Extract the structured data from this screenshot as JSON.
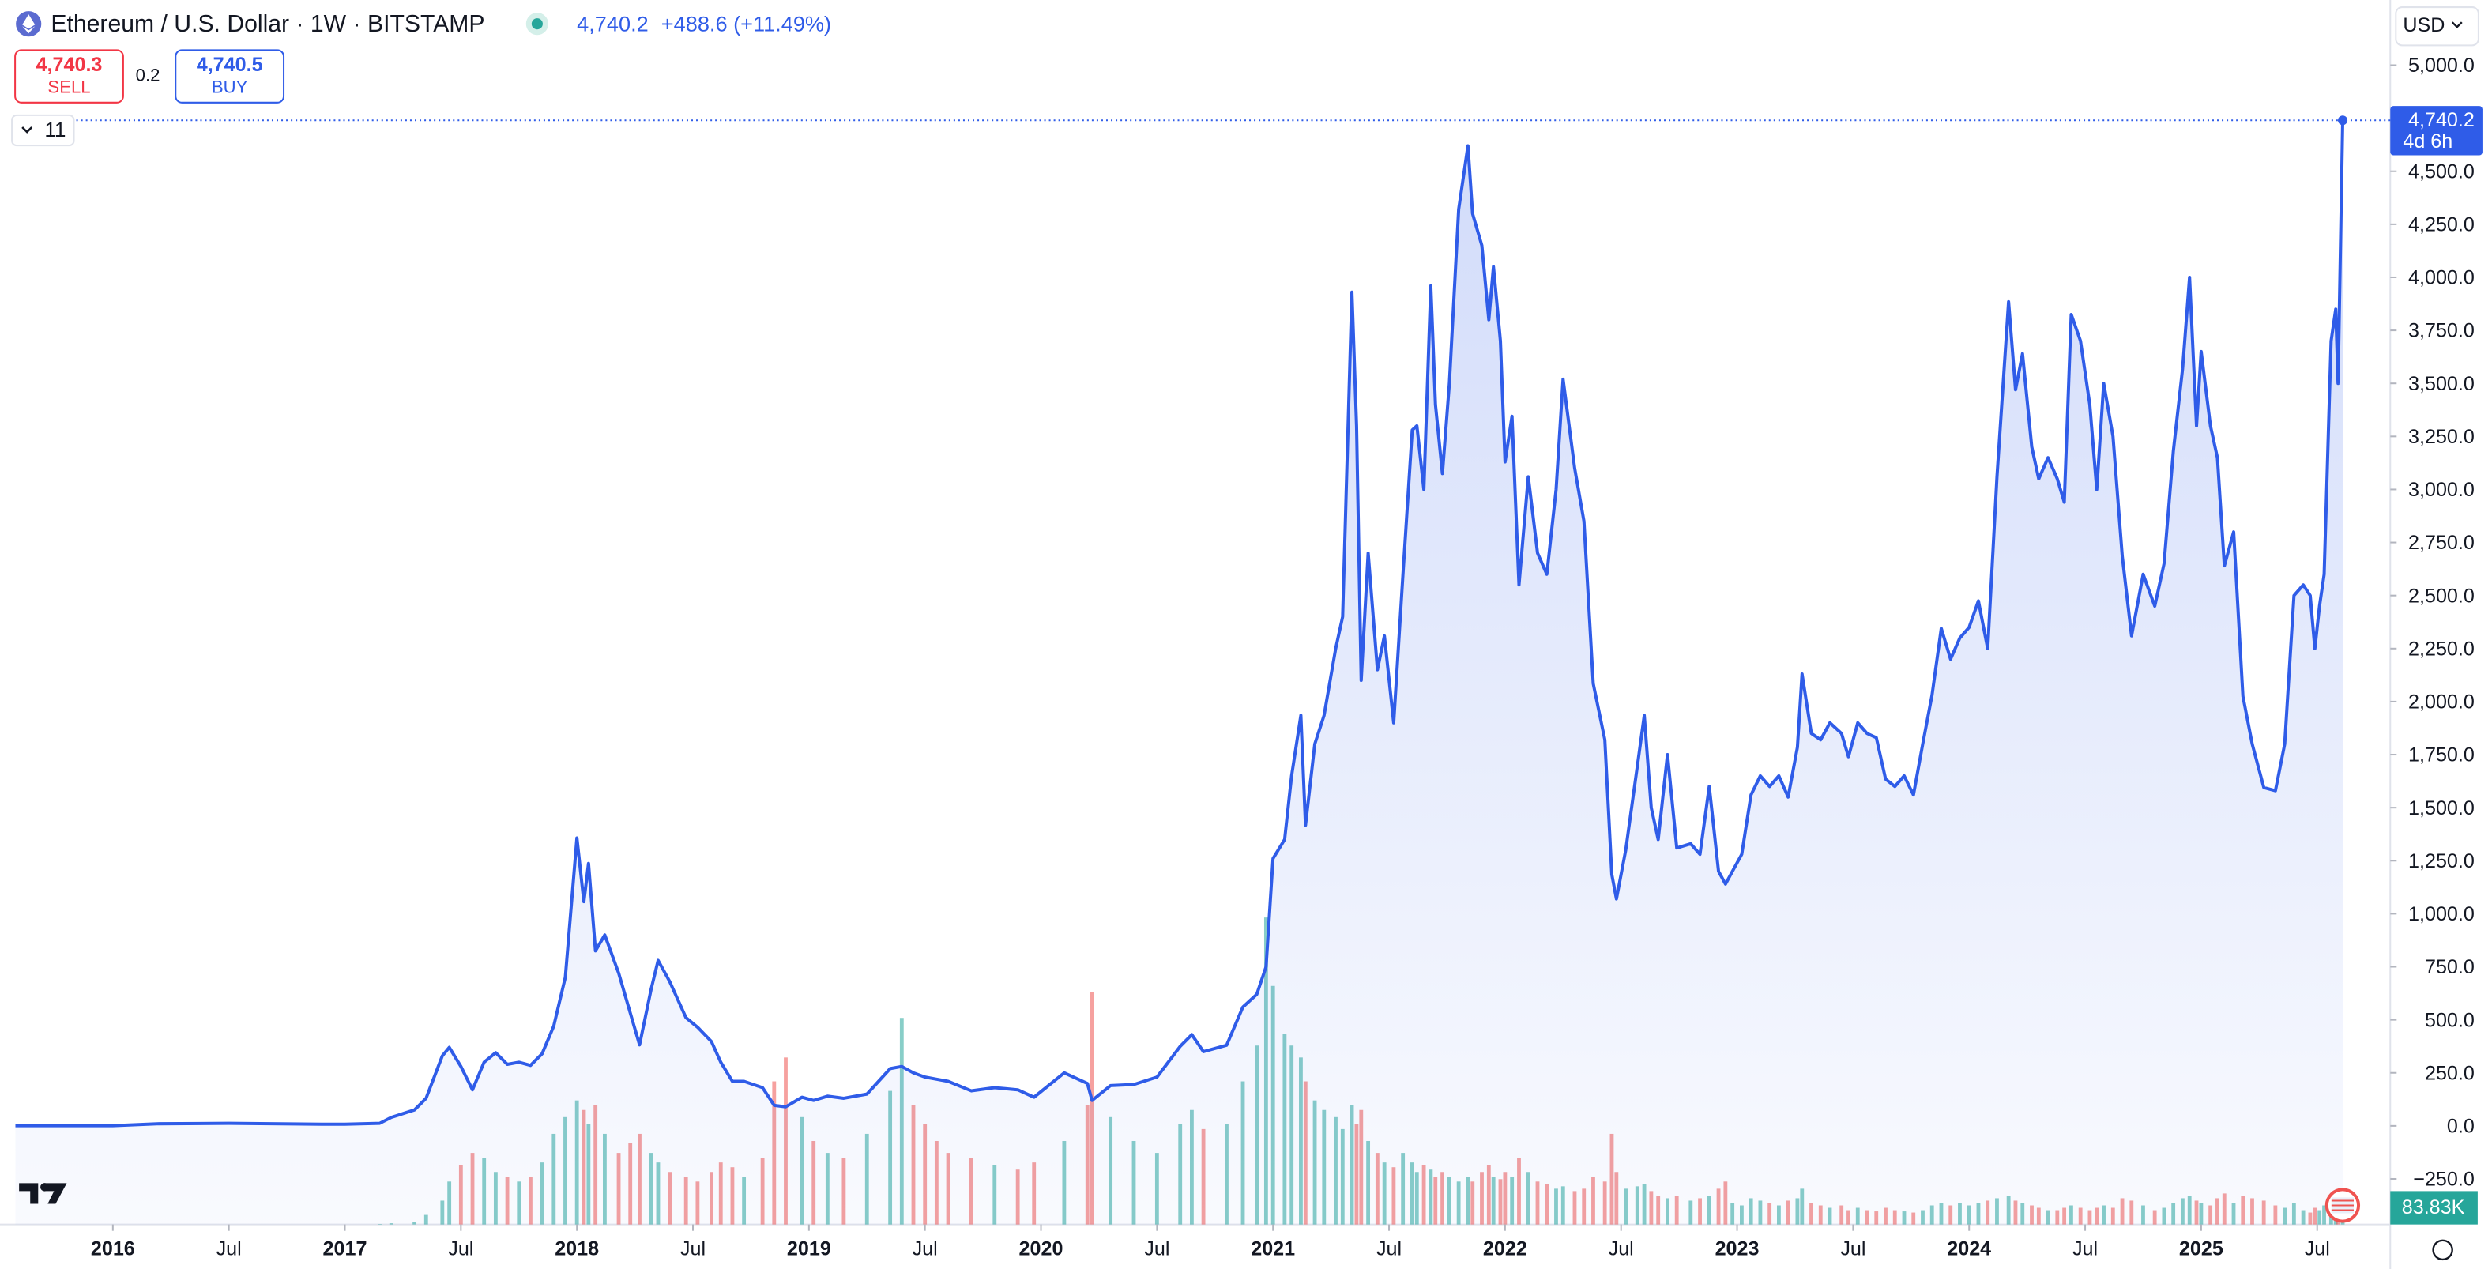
{
  "header": {
    "symbol": "Ethereum / U.S. Dollar · 1W · BITSTAMP",
    "last": "4,740.2",
    "change": "+488.6 (+11.49%)",
    "sell_price": "4,740.3",
    "sell": "SELL",
    "spread": "0.2",
    "buy_price": "4,740.5",
    "buy": "BUY",
    "indicators": "11",
    "currency": "USD"
  },
  "chart_data": {
    "type": "area",
    "color": "#2f5ce8",
    "grid": false,
    "x": [
      2015.58,
      2015.8,
      2016.0,
      2016.2,
      2016.5,
      2016.9,
      2017.0,
      2017.15,
      2017.2,
      2017.3,
      2017.35,
      2017.42,
      2017.45,
      2017.5,
      2017.55,
      2017.6,
      2017.65,
      2017.7,
      2017.75,
      2017.8,
      2017.85,
      2017.9,
      2017.95,
      2018.0,
      2018.03,
      2018.05,
      2018.08,
      2018.12,
      2018.18,
      2018.23,
      2018.27,
      2018.32,
      2018.35,
      2018.4,
      2018.47,
      2018.52,
      2018.58,
      2018.62,
      2018.67,
      2018.72,
      2018.8,
      2018.85,
      2018.9,
      2018.97,
      2019.02,
      2019.08,
      2019.15,
      2019.25,
      2019.35,
      2019.4,
      2019.45,
      2019.5,
      2019.55,
      2019.6,
      2019.7,
      2019.8,
      2019.9,
      2019.97,
      2020.1,
      2020.2,
      2020.22,
      2020.3,
      2020.4,
      2020.5,
      2020.6,
      2020.65,
      2020.7,
      2020.8,
      2020.87,
      2020.93,
      2020.97,
      2021.0,
      2021.05,
      2021.08,
      2021.12,
      2021.14,
      2021.18,
      2021.22,
      2021.27,
      2021.3,
      2021.34,
      2021.36,
      2021.38,
      2021.41,
      2021.45,
      2021.48,
      2021.52,
      2021.56,
      2021.6,
      2021.62,
      2021.65,
      2021.68,
      2021.7,
      2021.73,
      2021.76,
      2021.8,
      2021.84,
      2021.86,
      2021.9,
      2021.93,
      2021.95,
      2021.98,
      2022.0,
      2022.03,
      2022.06,
      2022.1,
      2022.14,
      2022.18,
      2022.22,
      2022.25,
      2022.3,
      2022.34,
      2022.38,
      2022.43,
      2022.46,
      2022.48,
      2022.52,
      2022.57,
      2022.6,
      2022.63,
      2022.66,
      2022.7,
      2022.74,
      2022.8,
      2022.84,
      2022.88,
      2022.92,
      2022.95,
      2022.98,
      2023.02,
      2023.06,
      2023.1,
      2023.14,
      2023.18,
      2023.22,
      2023.26,
      2023.28,
      2023.32,
      2023.36,
      2023.4,
      2023.45,
      2023.48,
      2023.52,
      2023.56,
      2023.6,
      2023.64,
      2023.68,
      2023.72,
      2023.76,
      2023.8,
      2023.84,
      2023.88,
      2023.92,
      2023.96,
      2024.0,
      2024.04,
      2024.08,
      2024.12,
      2024.17,
      2024.2,
      2024.23,
      2024.27,
      2024.3,
      2024.34,
      2024.38,
      2024.41,
      2024.44,
      2024.48,
      2024.52,
      2024.55,
      2024.58,
      2024.62,
      2024.66,
      2024.7,
      2024.75,
      2024.8,
      2024.84,
      2024.88,
      2024.92,
      2024.95,
      2024.98,
      2025.0,
      2025.04,
      2025.07,
      2025.1,
      2025.14,
      2025.18,
      2025.22,
      2025.27,
      2025.32,
      2025.36,
      2025.4,
      2025.44,
      2025.47,
      2025.49,
      2025.51,
      2025.53,
      2025.56,
      2025.58,
      2025.59,
      2025.61
    ],
    "values": [
      1,
      1,
      1,
      10,
      12,
      8,
      8,
      12,
      40,
      75,
      130,
      330,
      370,
      280,
      170,
      300,
      345,
      290,
      300,
      285,
      340,
      470,
      700,
      1357,
      1057,
      1237,
      825,
      900,
      720,
      532,
      382,
      645,
      780,
      680,
      510,
      465,
      397,
      300,
      210,
      210,
      180,
      97,
      90,
      135,
      120,
      140,
      130,
      150,
      270,
      280,
      250,
      230,
      220,
      210,
      165,
      180,
      170,
      135,
      250,
      200,
      120,
      190,
      195,
      230,
      375,
      430,
      350,
      380,
      560,
      620,
      750,
      1260,
      1350,
      1650,
      1935,
      1417,
      1800,
      1935,
      2250,
      2400,
      3930,
      3300,
      2100,
      2700,
      2150,
      2310,
      1900,
      2600,
      3280,
      3300,
      3000,
      3960,
      3400,
      3075,
      3500,
      4320,
      4620,
      4300,
      4150,
      3800,
      4050,
      3700,
      3130,
      3345,
      2550,
      3060,
      2700,
      2600,
      3000,
      3520,
      3100,
      2850,
      2085,
      1820,
      1185,
      1070,
      1300,
      1695,
      1935,
      1500,
      1350,
      1750,
      1310,
      1330,
      1280,
      1600,
      1200,
      1140,
      1200,
      1280,
      1560,
      1650,
      1600,
      1650,
      1550,
      1785,
      2130,
      1850,
      1820,
      1900,
      1850,
      1740,
      1900,
      1850,
      1830,
      1635,
      1600,
      1650,
      1560,
      1800,
      2030,
      2345,
      2200,
      2300,
      2350,
      2475,
      2250,
      3060,
      3885,
      3470,
      3640,
      3200,
      3050,
      3150,
      3050,
      2940,
      3825,
      3700,
      3400,
      3000,
      3500,
      3250,
      2685,
      2310,
      2600,
      2450,
      2650,
      3180,
      3570,
      4000,
      3300,
      3650,
      3300,
      3150,
      2640,
      2800,
      2025,
      1800,
      1595,
      1580,
      1800,
      2500,
      2550,
      2500,
      2250,
      2450,
      2600,
      3700,
      3850,
      3500,
      4740.2
    ],
    "volume": [
      0,
      0,
      0,
      0,
      0,
      0,
      0,
      2,
      5,
      10,
      40,
      100,
      180,
      250,
      300,
      280,
      220,
      200,
      180,
      200,
      260,
      380,
      450,
      520,
      480,
      420,
      500,
      380,
      300,
      340,
      380,
      300,
      260,
      220,
      200,
      180,
      220,
      260,
      240,
      200,
      280,
      600,
      700,
      450,
      350,
      300,
      280,
      380,
      560,
      866,
      500,
      420,
      350,
      300,
      280,
      250,
      230,
      260,
      350,
      500,
      973,
      450,
      350,
      300,
      420,
      480,
      400,
      420,
      600,
      750,
      1287,
      1000,
      800,
      750,
      700,
      600,
      520,
      480,
      450,
      400,
      500,
      420,
      480,
      350,
      300,
      260,
      240,
      300,
      260,
      220,
      250,
      230,
      200,
      220,
      200,
      180,
      200,
      180,
      220,
      250,
      200,
      190,
      220,
      200,
      280,
      220,
      180,
      170,
      150,
      160,
      140,
      150,
      200,
      180,
      380,
      220,
      150,
      160,
      170,
      140,
      120,
      110,
      120,
      100,
      110,
      120,
      150,
      180,
      90,
      80,
      110,
      100,
      90,
      80,
      100,
      110,
      150,
      90,
      80,
      70,
      80,
      60,
      70,
      60,
      55,
      70,
      60,
      55,
      50,
      60,
      80,
      90,
      80,
      90,
      80,
      90,
      100,
      110,
      120,
      100,
      90,
      80,
      70,
      60,
      60,
      70,
      80,
      70,
      60,
      70,
      80,
      70,
      110,
      100,
      80,
      60,
      70,
      90,
      110,
      120,
      100,
      90,
      80,
      110,
      130,
      90,
      120,
      110,
      100,
      80,
      70,
      90,
      60,
      50,
      70,
      60,
      80,
      110,
      100,
      90,
      83.83
    ],
    "volume_label": "83.83K",
    "volume_colors": {
      "up": "#26a69a",
      "down": "#ef5350"
    },
    "vlim": [
      0,
      1600
    ],
    "last_price_label": "4,740.2",
    "countdown": "4d 6h",
    "xlim": [
      2015.5753,
      2025.8151
    ],
    "xticks": [
      2016,
      {
        "value": 2016.5,
        "label": "Jul"
      },
      2017,
      {
        "value": 2017.5,
        "label": "Jul"
      },
      2018,
      {
        "value": 2018.5,
        "label": "Jul"
      },
      2019,
      {
        "value": 2019.5,
        "label": "Jul"
      },
      2020,
      {
        "value": 2020.5,
        "label": "Jul"
      },
      2021,
      {
        "value": 2021.5,
        "label": "Jul"
      },
      2022,
      {
        "value": 2022.5,
        "label": "Jul"
      },
      2023,
      {
        "value": 2023.5,
        "label": "Jul"
      },
      2024,
      {
        "value": 2024.5,
        "label": "Jul"
      },
      2025,
      {
        "value": 2025.5,
        "label": "Jul"
      }
    ],
    "ylim": [
      -464.8,
      5307.3
    ],
    "yticks": [
      {
        "value": -250,
        "label": "−250.0"
      },
      {
        "value": 0,
        "label": "0.0"
      },
      {
        "value": 250,
        "label": "250.0"
      },
      {
        "value": 500,
        "label": "500.0"
      },
      {
        "value": 750,
        "label": "750.0"
      },
      {
        "value": 1000,
        "label": "1,000.0"
      },
      {
        "value": 1250,
        "label": "1,250.0"
      },
      {
        "value": 1500,
        "label": "1,500.0"
      },
      {
        "value": 1750,
        "label": "1,750.0"
      },
      {
        "value": 2000,
        "label": "2,000.0"
      },
      {
        "value": 2250,
        "label": "2,250.0"
      },
      {
        "value": 2500,
        "label": "2,500.0"
      },
      {
        "value": 2750,
        "label": "2,750.0"
      },
      {
        "value": 3000,
        "label": "3,000.0"
      },
      {
        "value": 3250,
        "label": "3,250.0"
      },
      {
        "value": 3500,
        "label": "3,500.0"
      },
      {
        "value": 3750,
        "label": "3,750.0"
      },
      {
        "value": 4000,
        "label": "4,000.0"
      },
      {
        "value": 4250,
        "label": "4,250.0"
      },
      {
        "value": 4500,
        "label": "4,500.0"
      },
      {
        "value": 5000,
        "label": "5,000.0"
      }
    ]
  }
}
